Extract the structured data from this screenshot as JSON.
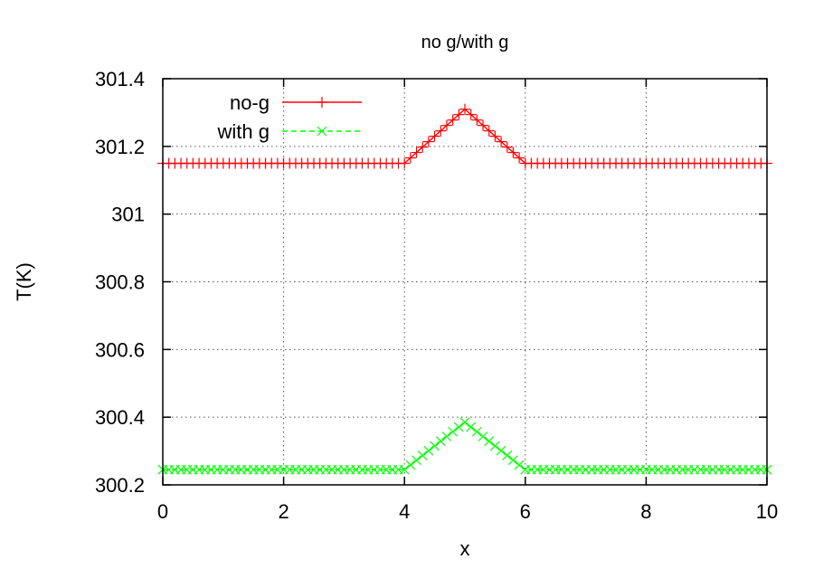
{
  "chart_data": {
    "type": "line",
    "title": "no g/with g",
    "xlabel": "x",
    "ylabel": "T(K)",
    "xlim": [
      0,
      10
    ],
    "ylim": [
      300.2,
      301.4
    ],
    "xticks": [
      0,
      2,
      4,
      6,
      8,
      10
    ],
    "xtick_labels": [
      "0",
      "2",
      "4",
      "6",
      "8",
      "10"
    ],
    "yticks": [
      300.2,
      300.4,
      300.6,
      300.8,
      301,
      301.2,
      301.4
    ],
    "ytick_labels": [
      "300.2",
      "300.4",
      "300.6",
      "300.8",
      "301",
      "301.2",
      "301.4"
    ],
    "grid": true,
    "legend_position": "top-left",
    "series": [
      {
        "name": "no-g",
        "color": "#ff0000",
        "marker": "plus",
        "line_style": "solid",
        "x": [
          0,
          4,
          5,
          6,
          10
        ],
        "y": [
          301.15,
          301.15,
          301.31,
          301.15,
          301.15
        ]
      },
      {
        "name": "with g",
        "color": "#00ff00",
        "marker": "cross",
        "line_style": "dashed",
        "x": [
          0,
          4,
          5,
          6,
          10
        ],
        "y": [
          300.245,
          300.245,
          300.385,
          300.245,
          300.245
        ]
      }
    ]
  }
}
